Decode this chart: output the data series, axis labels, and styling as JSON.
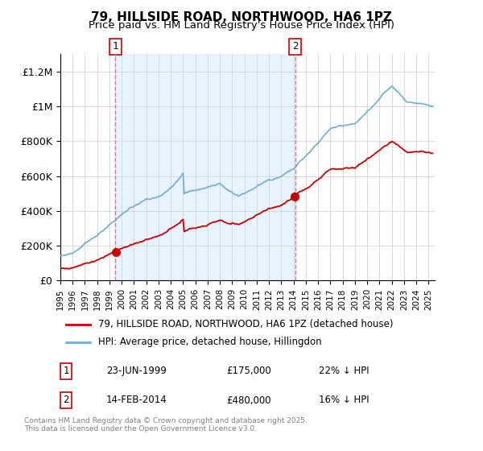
{
  "title_line1": "79, HILLSIDE ROAD, NORTHWOOD, HA6 1PZ",
  "title_line2": "Price paid vs. HM Land Registry's House Price Index (HPI)",
  "ylabel_ticks": [
    "£0",
    "£200K",
    "£400K",
    "£600K",
    "£800K",
    "£1M",
    "£1.2M"
  ],
  "ytick_values": [
    0,
    200000,
    400000,
    600000,
    800000,
    1000000,
    1200000
  ],
  "ylim": [
    0,
    1300000
  ],
  "xlim_start": 1995.0,
  "xlim_end": 2025.5,
  "transaction1_date": 1999.476,
  "transaction1_price": 175000,
  "transaction1_label": "1",
  "transaction2_date": 2014.12,
  "transaction2_price": 480000,
  "transaction2_label": "2",
  "hpi_color": "#6baed6",
  "property_color": "#cc0000",
  "dashed_line_color": "#ff6666",
  "background_between_color": "#ddeeff",
  "grid_color": "#cccccc",
  "legend_label_property": "79, HILLSIDE ROAD, NORTHWOOD, HA6 1PZ (detached house)",
  "legend_label_hpi": "HPI: Average price, detached house, Hillingdon",
  "table_row1": [
    "1",
    "23-JUN-1999",
    "£175,000",
    "22% ↓ HPI"
  ],
  "table_row2": [
    "2",
    "14-FEB-2014",
    "£480,000",
    "16% ↓ HPI"
  ],
  "footer_text": "Contains HM Land Registry data © Crown copyright and database right 2025.\nThis data is licensed under the Open Government Licence v3.0.",
  "title_fontsize": 11,
  "axis_fontsize": 9,
  "legend_fontsize": 9
}
